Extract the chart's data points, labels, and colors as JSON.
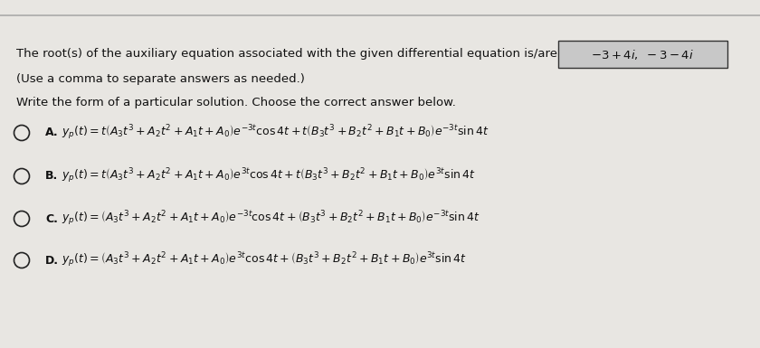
{
  "bg_color": "#d8d5d0",
  "panel_color": "#e8e6e2",
  "text_color": "#111111",
  "roots_box_bg": "#c8c8c8",
  "roots_box_edge": "#333333",
  "radio_color": "#222222",
  "header_line1": "The root(s) of the auxiliary equation associated with the given differential equation is/are",
  "header_line2": "(Use a comma to separate answers as needed.)",
  "roots_text": "$-3+4i,\\,-3-4i$",
  "prompt_text": "Write the form of a particular solution. Choose the correct answer below.",
  "options": [
    {
      "label": "A.",
      "line1": "$y_p(t)=t\\left(A_3t^3+A_2t^2+A_1t+A_0\\right)e^{-3t}\\cos 4t+t\\left(B_3t^3+B_2t^2+B_1t+B_0\\right)e^{-3t}\\sin 4t$"
    },
    {
      "label": "B.",
      "line1": "$y_p(t)=t\\left(A_3t^3+A_2t^2+A_1t+A_0\\right)e^{3t}\\cos 4t+t\\left(B_3t^3+B_2t^2+B_1t+B_0\\right)e^{3t}\\sin 4t$"
    },
    {
      "label": "C.",
      "line1": "$y_p(t)=\\left(A_3t^3+A_2t^2+A_1t+A_0\\right)e^{-3t}\\cos 4t+\\left(B_3t^3+B_2t^2+B_1t+B_0\\right)e^{-3t}\\sin 4t$"
    },
    {
      "label": "D.",
      "line1": "$y_p(t)=\\left(A_3t^3+A_2t^2+A_1t+A_0\\right)e^{3t}\\cos 4t+\\left(B_3t^3+B_2t^2+B_1t+B_0\\right)e^{3t}\\sin 4t$"
    }
  ],
  "figsize": [
    8.4,
    3.85
  ],
  "dpi": 100
}
